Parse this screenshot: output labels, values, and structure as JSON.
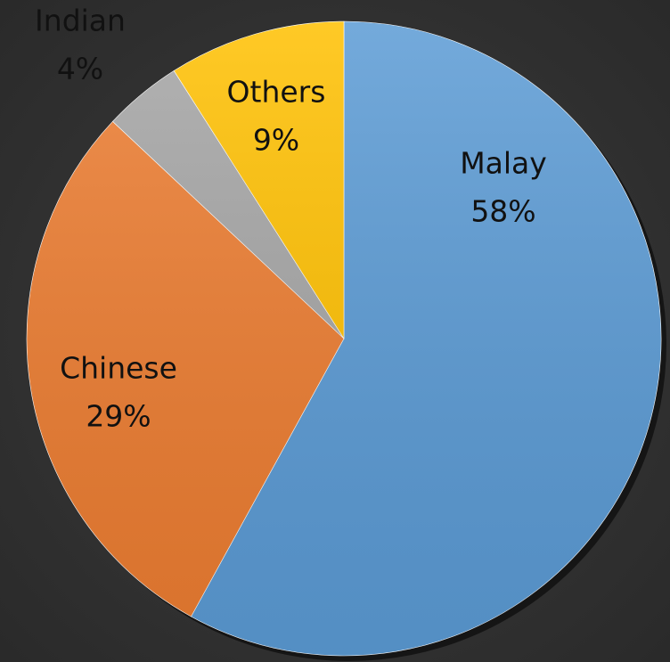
{
  "chart_data": {
    "type": "pie",
    "categories": [
      "Malay",
      "Chinese",
      "Indian",
      "Others"
    ],
    "values": [
      58,
      29,
      4,
      9
    ],
    "value_labels": [
      "58%",
      "29%",
      "4%",
      "9%"
    ],
    "colors": [
      "#5b9bd5",
      "#ed7d31",
      "#a5a5a5",
      "#ffc000"
    ]
  }
}
